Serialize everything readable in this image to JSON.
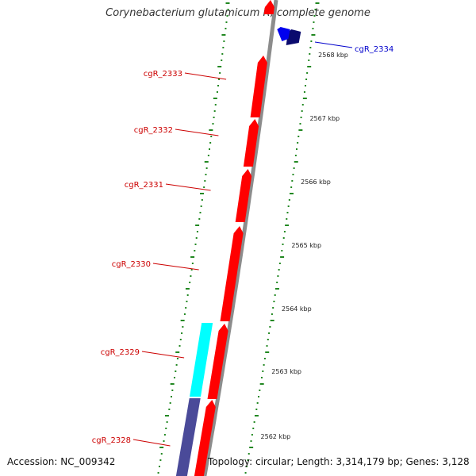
{
  "title": "Corynebacterium glutamicum R, complete genome",
  "footer": {
    "accession": "Accession: NC_009342",
    "summary": "Topology: circular; Length: 3,314,179 bp; Genes: 3,128"
  },
  "colors": {
    "red_gene": "#ff0000",
    "blue_gene": "#0000ee",
    "navy_gene": "#0a0a6e",
    "cyan_gene": "#00ffff",
    "slate_gene": "#4a4a99",
    "backbone": "#8c8c8c",
    "tick": "#228822",
    "red_label": "#cc0000",
    "blue_label": "#0000cc",
    "kbp_label": "#222222"
  },
  "genes": [
    {
      "name": "cgR_2334",
      "track": "forward-outer",
      "color": "blue"
    },
    {
      "name": "cgR_2333",
      "track": "reverse-inner",
      "color": "red"
    },
    {
      "name": "cgR_2332",
      "track": "reverse-inner",
      "color": "red"
    },
    {
      "name": "cgR_2331",
      "track": "reverse-inner",
      "color": "red"
    },
    {
      "name": "cgR_2330",
      "track": "reverse-inner",
      "color": "red"
    },
    {
      "name": "cgR_2329",
      "track": "reverse-outer",
      "color": "cyan"
    },
    {
      "name": "cgR_2328",
      "track": "reverse-inner",
      "color": "red"
    }
  ],
  "unlabeled_features": [
    {
      "track": "reverse-inner",
      "color": "red"
    },
    {
      "track": "reverse-inner",
      "color": "red"
    },
    {
      "track": "reverse-inner",
      "color": "red"
    },
    {
      "track": "forward-outer",
      "color": "navy"
    },
    {
      "track": "reverse-outer",
      "color": "slate"
    }
  ],
  "position_labels": [
    "2568 kbp",
    "2567 kbp",
    "2566 kbp",
    "2565 kbp",
    "2564 kbp",
    "2563 kbp",
    "2562 kbp"
  ]
}
